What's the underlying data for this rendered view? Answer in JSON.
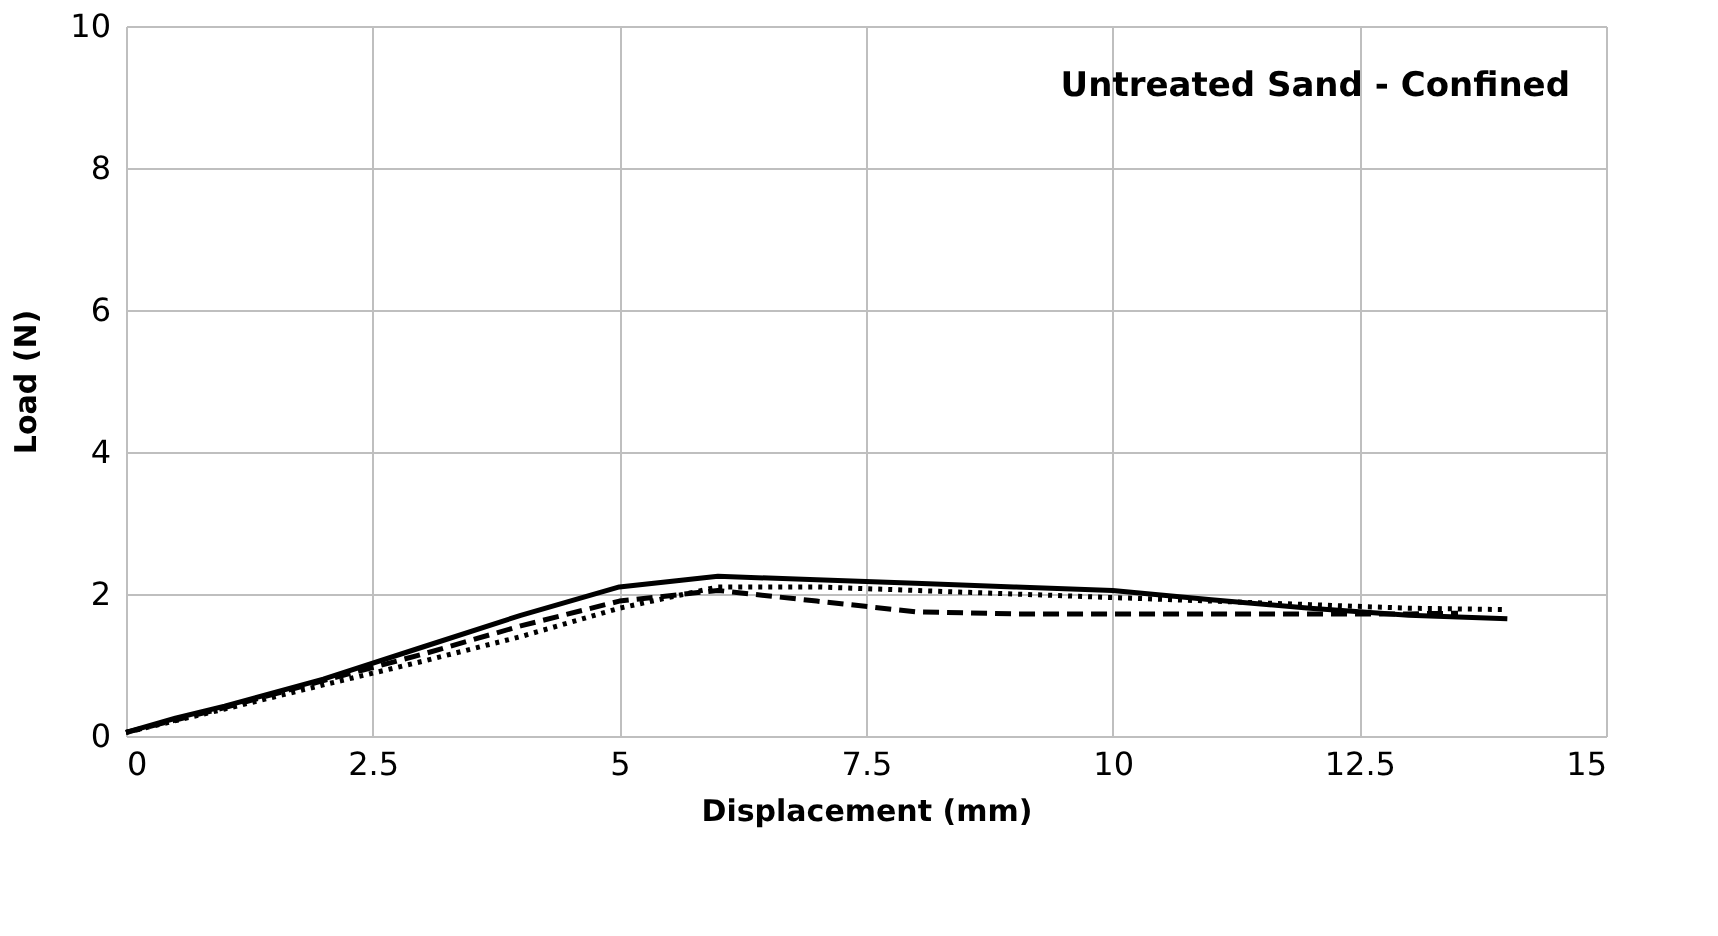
{
  "chart_data": {
    "type": "line",
    "title": "Untreated Sand   - Confined",
    "xlabel": "Displacement (mm)",
    "ylabel": "Load (N)",
    "xlim": [
      0,
      15
    ],
    "xticks": [
      0,
      2.5,
      5,
      7.5,
      10,
      12.5,
      15
    ],
    "ylim": [
      0,
      10
    ],
    "yticks": [
      0,
      2,
      4,
      6,
      8,
      10
    ],
    "grid": true,
    "marker": "none",
    "series": [
      {
        "color": "#000000",
        "line_style": "solid",
        "x": [
          0,
          0.5,
          1,
          2,
          3,
          4,
          5,
          6,
          7,
          8,
          9,
          10,
          11,
          12,
          13,
          14
        ],
        "values": [
          0.05,
          0.25,
          0.42,
          0.8,
          1.25,
          1.7,
          2.1,
          2.25,
          2.2,
          2.15,
          2.1,
          2.05,
          1.92,
          1.8,
          1.7,
          1.65
        ]
      },
      {
        "color": "#000000",
        "line_style": "dashed",
        "x": [
          0,
          1,
          2,
          3,
          4,
          5,
          6,
          7,
          8,
          9,
          10,
          11,
          12,
          13,
          13.5
        ],
        "values": [
          0.05,
          0.4,
          0.78,
          1.15,
          1.55,
          1.9,
          2.05,
          1.9,
          1.75,
          1.72,
          1.72,
          1.72,
          1.72,
          1.72,
          1.73
        ]
      },
      {
        "color": "#000000",
        "line_style": "dotted",
        "x": [
          0,
          1,
          2,
          3,
          4,
          5,
          6,
          7,
          8,
          9,
          10,
          11,
          12,
          13,
          14
        ],
        "values": [
          0.05,
          0.38,
          0.72,
          1.05,
          1.4,
          1.8,
          2.1,
          2.1,
          2.05,
          2.0,
          1.95,
          1.9,
          1.85,
          1.8,
          1.78
        ]
      }
    ]
  }
}
